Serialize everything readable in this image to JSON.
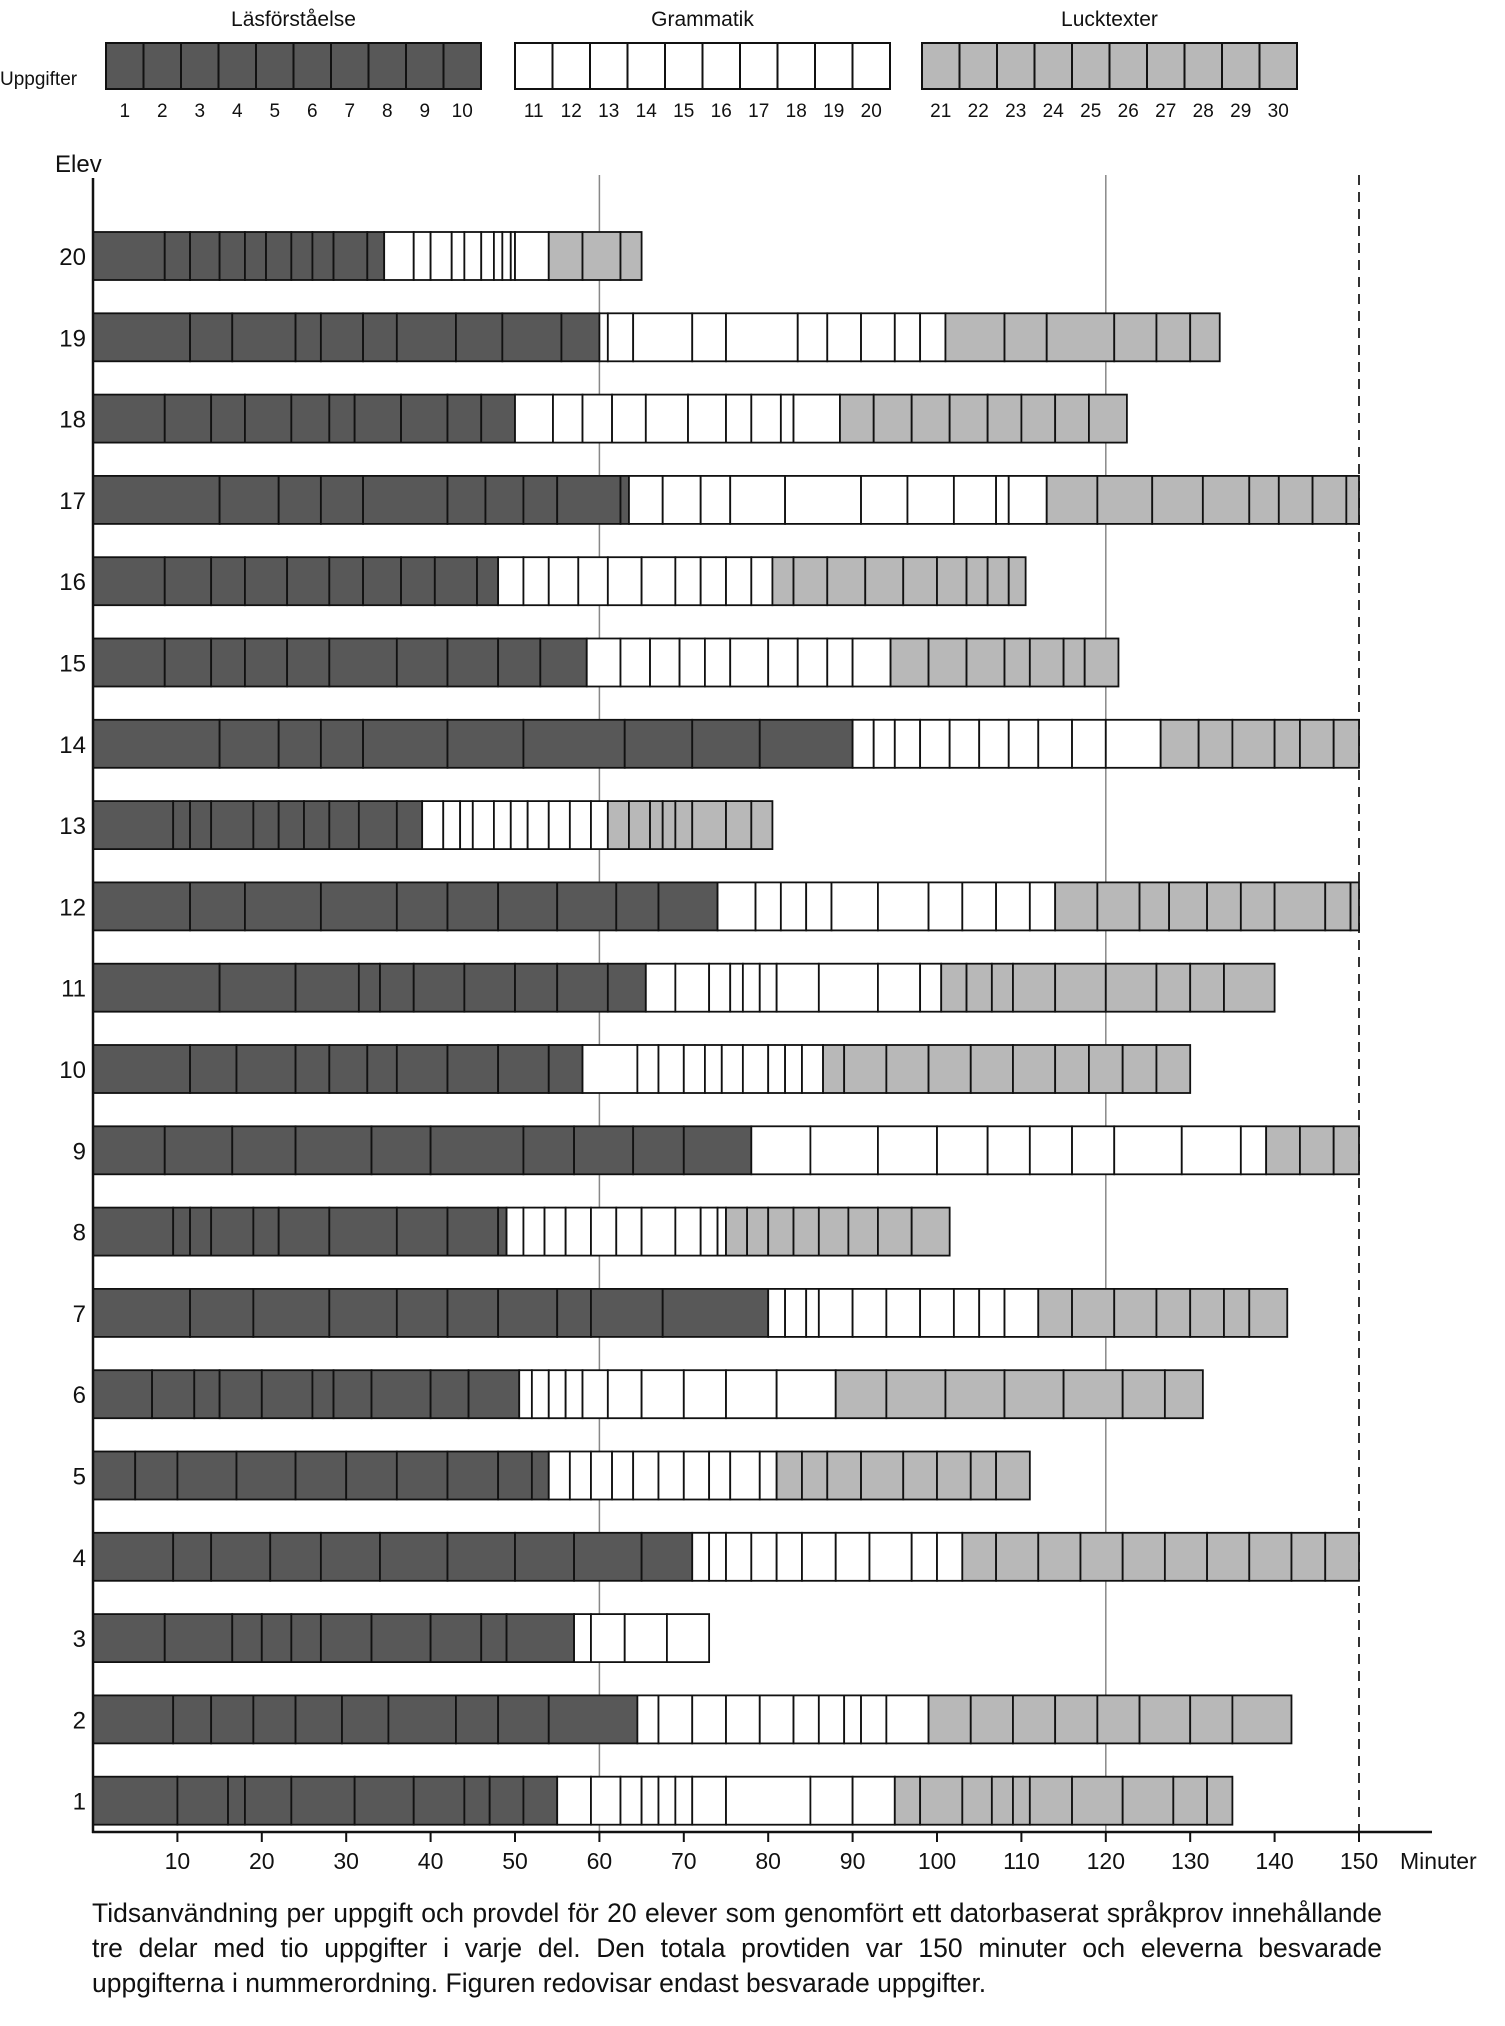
{
  "chart_data": {
    "type": "bar",
    "orientation": "horizontal-stacked",
    "legend": {
      "row_label": "Uppgifter",
      "parts": [
        {
          "name": "Läsförståelse",
          "color": "#585858",
          "tasks": [
            1,
            2,
            3,
            4,
            5,
            6,
            7,
            8,
            9,
            10
          ]
        },
        {
          "name": "Grammatik",
          "color": "#ffffff",
          "tasks": [
            11,
            12,
            13,
            14,
            15,
            16,
            17,
            18,
            19,
            20
          ]
        },
        {
          "name": "Lucktexter",
          "color": "#b8b8b8",
          "tasks": [
            21,
            22,
            23,
            24,
            25,
            26,
            27,
            28,
            29,
            30
          ]
        }
      ],
      "placement": "top"
    },
    "ylabel": "Elev",
    "xlabel": "Minuter",
    "xlim": [
      0,
      155
    ],
    "x_ticks": [
      10,
      20,
      30,
      40,
      50,
      60,
      70,
      80,
      90,
      100,
      110,
      120,
      130,
      140,
      150
    ],
    "reference_lines": [
      {
        "x": 60,
        "style": "solid"
      },
      {
        "x": 120,
        "style": "solid"
      },
      {
        "x": 150,
        "style": "dashed"
      }
    ],
    "students": [
      {
        "elev": 20,
        "boundaries": [
          0,
          8.5,
          11.5,
          15,
          18,
          20.5,
          23.5,
          26,
          28.5,
          32.5,
          34.5,
          38,
          40,
          42.5,
          44,
          46,
          47.5,
          48.5,
          49.5,
          50,
          54,
          58,
          62.5,
          65
        ]
      },
      {
        "elev": 19,
        "boundaries": [
          0,
          11.5,
          16.5,
          24,
          27,
          32,
          36,
          43,
          48.5,
          55.5,
          60,
          61,
          64,
          71,
          75,
          83.5,
          87,
          91,
          95,
          98,
          101,
          108,
          113,
          121,
          126,
          130,
          133.5
        ]
      },
      {
        "elev": 18,
        "boundaries": [
          0,
          8.5,
          14,
          18,
          23.5,
          28,
          31,
          36.5,
          42,
          46,
          50,
          54.5,
          58,
          61.5,
          65.5,
          70.5,
          75,
          78,
          81.5,
          83,
          88.5,
          92.5,
          97,
          101.5,
          106,
          110,
          114,
          118,
          122.5
        ]
      },
      {
        "elev": 17,
        "boundaries": [
          0,
          15,
          22,
          27,
          32,
          42,
          46.5,
          51,
          55,
          62.5,
          63.5,
          67.5,
          72,
          75.5,
          82,
          91,
          96.5,
          102,
          107,
          108.5,
          113,
          119,
          125.5,
          131.5,
          137,
          140.5,
          144.5,
          148.5,
          150
        ]
      },
      {
        "elev": 16,
        "boundaries": [
          0,
          8.5,
          14,
          18,
          23,
          28,
          32,
          36.5,
          40.5,
          45.5,
          48,
          51,
          54,
          57.5,
          61,
          65,
          69,
          72,
          75,
          78,
          80.5,
          83,
          87,
          91.5,
          96,
          100,
          103.5,
          106,
          108.5,
          110.5
        ]
      },
      {
        "elev": 15,
        "boundaries": [
          0,
          8.5,
          14,
          18,
          23,
          28,
          36,
          42,
          48,
          53,
          58.5,
          62.5,
          66,
          69.5,
          72.5,
          75.5,
          80,
          83.5,
          87,
          90,
          94.5,
          99,
          103.5,
          108,
          111,
          115,
          117.5,
          121.5
        ]
      },
      {
        "elev": 14,
        "boundaries": [
          0,
          15,
          22,
          27,
          32,
          42,
          51,
          63,
          71,
          79,
          90,
          92.5,
          95,
          98,
          101.5,
          105,
          108.5,
          112,
          116,
          120,
          126.5,
          131,
          135,
          140,
          143,
          147,
          150
        ]
      },
      {
        "elev": 13,
        "boundaries": [
          0,
          9.5,
          11.5,
          14,
          19,
          22,
          25,
          28,
          31.5,
          36,
          39,
          41.5,
          43.5,
          45,
          47.5,
          49.5,
          51.5,
          54,
          56.5,
          59,
          61,
          63.5,
          66,
          67.5,
          69,
          71,
          75,
          78,
          80.5
        ]
      },
      {
        "elev": 12,
        "boundaries": [
          0,
          11.5,
          18,
          27,
          36,
          42,
          48,
          55,
          62,
          67,
          74,
          78.5,
          81.5,
          84.5,
          87.5,
          93,
          99,
          103,
          107,
          111,
          114,
          119,
          124,
          127.5,
          132,
          136,
          140,
          146,
          149,
          150
        ]
      },
      {
        "elev": 11,
        "boundaries": [
          0,
          15,
          24,
          31.5,
          34,
          38,
          44,
          50,
          55,
          61,
          65.5,
          69,
          73,
          75.5,
          77,
          79,
          81,
          86,
          93,
          98,
          100.5,
          103.5,
          106.5,
          109,
          114,
          120,
          126,
          130,
          134,
          140
        ]
      },
      {
        "elev": 10,
        "boundaries": [
          0,
          11.5,
          17,
          24,
          28,
          32.5,
          36,
          42,
          48,
          54,
          58,
          64.5,
          67,
          70,
          72.5,
          74.5,
          77,
          80,
          82,
          84,
          86.5,
          89,
          94,
          99,
          104,
          109,
          114,
          118,
          122,
          126,
          130
        ]
      },
      {
        "elev": 9,
        "boundaries": [
          0,
          8.5,
          16.5,
          24,
          33,
          40,
          51,
          57,
          64,
          70,
          78,
          85,
          93,
          100,
          106,
          111,
          116,
          121,
          129,
          136,
          139,
          143,
          147,
          150
        ]
      },
      {
        "elev": 8,
        "boundaries": [
          0,
          9.5,
          11.5,
          14,
          19,
          22,
          28,
          36,
          42,
          48,
          49,
          51,
          53.5,
          56,
          59,
          62,
          65,
          69,
          72,
          74,
          75,
          77.5,
          80,
          83,
          86,
          89.5,
          93,
          97,
          101.5
        ]
      },
      {
        "elev": 7,
        "boundaries": [
          0,
          11.5,
          19,
          28,
          36,
          42,
          48,
          55,
          59,
          67.5,
          80,
          82,
          84.5,
          86,
          90,
          94,
          98,
          102,
          105,
          108,
          112,
          116,
          121,
          126,
          130,
          134,
          137,
          141.5
        ]
      },
      {
        "elev": 6,
        "boundaries": [
          0,
          7,
          12,
          15,
          20,
          26,
          28.5,
          33,
          40,
          44.5,
          50.5,
          52,
          54,
          56,
          58,
          61,
          65,
          70,
          75,
          81,
          88,
          94,
          101,
          108,
          115,
          122,
          127,
          131.5
        ]
      },
      {
        "elev": 5,
        "boundaries": [
          0,
          5,
          10,
          17,
          24,
          30,
          36,
          42,
          48,
          52,
          54,
          56.5,
          59,
          61.5,
          64,
          67,
          70,
          73,
          75.5,
          79,
          81,
          84,
          87,
          91,
          96,
          100,
          104,
          107,
          111
        ]
      },
      {
        "elev": 4,
        "boundaries": [
          0,
          9.5,
          14,
          21,
          27,
          34,
          42,
          50,
          57,
          65,
          71,
          73,
          75,
          78,
          81,
          84,
          88,
          92,
          97,
          100,
          103,
          107,
          112,
          117,
          122,
          127,
          132,
          137,
          142,
          146,
          150
        ]
      },
      {
        "elev": 3,
        "boundaries": [
          0,
          8.5,
          16.5,
          20,
          23.5,
          27,
          33,
          40,
          46,
          49,
          57,
          59,
          63,
          68,
          73
        ]
      },
      {
        "elev": 2,
        "boundaries": [
          0,
          9.5,
          14,
          19,
          24,
          29.5,
          35,
          43,
          48,
          54,
          64.5,
          67,
          71,
          75,
          79,
          83,
          86,
          89,
          91,
          94,
          99,
          104,
          109,
          114,
          119,
          124,
          130,
          135,
          142
        ]
      },
      {
        "elev": 1,
        "boundaries": [
          0,
          10,
          16,
          18,
          23.5,
          31,
          38,
          44,
          47,
          51,
          55,
          59,
          62.5,
          65,
          67,
          69,
          71,
          75,
          85,
          90,
          95,
          98,
          103,
          106.5,
          109,
          111,
          116,
          122,
          128,
          132,
          135
        ]
      }
    ]
  },
  "caption": "Tidsanvändning per uppgift och provdel för 20 elever som genomfört ett datorbaserat språkprov innehållande tre delar med tio uppgifter i varje del. Den totala provtiden var 150 minuter och eleverna besvarade uppgifterna i nummerordning. Figuren redovisar endast besvarade uppgifter."
}
